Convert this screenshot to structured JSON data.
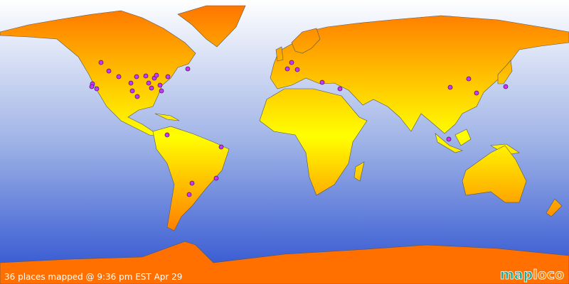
{
  "caption": "36 places mapped @ 9:36 pm EST Apr 29",
  "logo": {
    "first": "map",
    "second": "loco"
  }
}
